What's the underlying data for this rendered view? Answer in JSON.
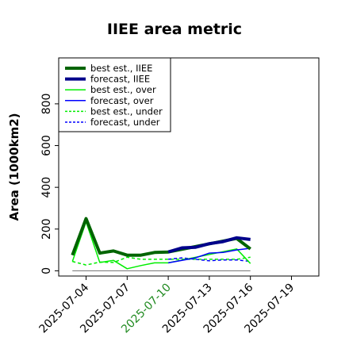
{
  "chart_data": {
    "type": "line",
    "title": "IIEE area metric",
    "xlabel": "",
    "ylabel": "Area (1000km2)",
    "ylim": [
      -25,
      1020
    ],
    "yticks": [
      "0",
      "200",
      "400",
      "600",
      "800"
    ],
    "ytick_values": [
      0,
      200,
      400,
      600,
      800
    ],
    "xlim": [
      "2025-07-02",
      "2025-07-21"
    ],
    "xticks": [
      "2025-07-04",
      "2025-07-07",
      "2025-07-10",
      "2025-07-13",
      "2025-07-16",
      "2025-07-19"
    ],
    "highlighted_xtick": "2025-07-10",
    "highlight_color": "#228b22",
    "grid": false,
    "legend_position": "top-left",
    "reference_line": {
      "y": 0,
      "x_start": "2025-07-03",
      "x_end": "2025-07-16",
      "color": "#808080"
    },
    "series": [
      {
        "name": "best est., IIEE",
        "color": "#006400",
        "dash": "solid",
        "width": 4,
        "points": [
          [
            "2025-07-03",
            75
          ],
          [
            "2025-07-04",
            250
          ],
          [
            "2025-07-05",
            85
          ],
          [
            "2025-07-06",
            95
          ],
          [
            "2025-07-07",
            75
          ],
          [
            "2025-07-08",
            75
          ],
          [
            "2025-07-09",
            88
          ],
          [
            "2025-07-10",
            90
          ],
          [
            "2025-07-15",
            155
          ],
          [
            "2025-07-16",
            105
          ]
        ]
      },
      {
        "name": "forecast, IIEE",
        "color": "#00008b",
        "dash": "solid",
        "width": 4,
        "points": [
          [
            "2025-07-10",
            90
          ],
          [
            "2025-07-11",
            110
          ],
          [
            "2025-07-12",
            113
          ],
          [
            "2025-07-13",
            130
          ],
          [
            "2025-07-14",
            140
          ],
          [
            "2025-07-15",
            158
          ],
          [
            "2025-07-16",
            150
          ]
        ]
      },
      {
        "name": "best est., over",
        "color": "#00ee00",
        "dash": "solid",
        "width": 1.5,
        "points": [
          [
            "2025-07-03",
            45
          ],
          [
            "2025-07-04",
            235
          ],
          [
            "2025-07-05",
            40
          ],
          [
            "2025-07-06",
            50
          ],
          [
            "2025-07-07",
            10
          ],
          [
            "2025-07-08",
            25
          ],
          [
            "2025-07-09",
            38
          ],
          [
            "2025-07-10",
            38
          ],
          [
            "2025-07-15",
            105
          ],
          [
            "2025-07-16",
            35
          ]
        ]
      },
      {
        "name": "forecast, over",
        "color": "#0000ff",
        "dash": "solid",
        "width": 1.5,
        "points": [
          [
            "2025-07-10",
            38
          ],
          [
            "2025-07-11",
            50
          ],
          [
            "2025-07-12",
            62
          ],
          [
            "2025-07-13",
            85
          ],
          [
            "2025-07-14",
            88
          ],
          [
            "2025-07-15",
            100
          ],
          [
            "2025-07-16",
            108
          ]
        ]
      },
      {
        "name": "best est., under",
        "color": "#00ee00",
        "dash": "dashed",
        "width": 1.5,
        "points": [
          [
            "2025-07-03",
            45
          ],
          [
            "2025-07-04",
            28
          ],
          [
            "2025-07-05",
            42
          ],
          [
            "2025-07-06",
            40
          ],
          [
            "2025-07-07",
            65
          ],
          [
            "2025-07-08",
            55
          ],
          [
            "2025-07-09",
            55
          ],
          [
            "2025-07-10",
            55
          ],
          [
            "2025-07-15",
            55
          ],
          [
            "2025-07-16",
            65
          ]
        ]
      },
      {
        "name": "forecast, under",
        "color": "#0000ff",
        "dash": "dashed",
        "width": 1.5,
        "points": [
          [
            "2025-07-10",
            55
          ],
          [
            "2025-07-11",
            62
          ],
          [
            "2025-07-12",
            55
          ],
          [
            "2025-07-13",
            48
          ],
          [
            "2025-07-14",
            52
          ],
          [
            "2025-07-15",
            52
          ],
          [
            "2025-07-16",
            45
          ]
        ]
      }
    ]
  }
}
